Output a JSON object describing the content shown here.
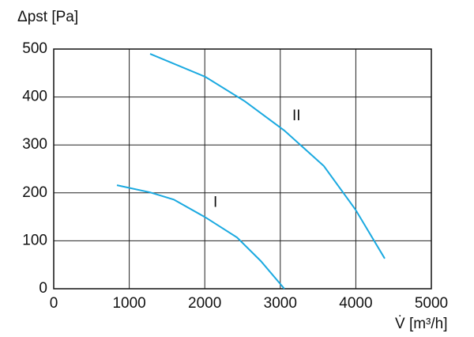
{
  "chart_data": {
    "type": "line",
    "y_label": "Δpst [Pa]",
    "x_label": "V̇ [m³/h]",
    "xlim": [
      0,
      5000
    ],
    "xticks": [
      0,
      1000,
      2000,
      3000,
      4000,
      5000
    ],
    "ylim": [
      0,
      500
    ],
    "yticks": [
      0,
      100,
      200,
      300,
      400,
      500
    ],
    "grid": true,
    "series": [
      {
        "name": "I",
        "color": "#1aa9e0",
        "x": [
          837,
          1276,
          1590,
          2008,
          2427,
          2741,
          3054
        ],
        "values": [
          216,
          201,
          186,
          149,
          107,
          58,
          0
        ]
      },
      {
        "name": "II",
        "color": "#1aa9e0",
        "x": [
          1276,
          2008,
          2531,
          3054,
          3577,
          3996,
          4383
        ],
        "values": [
          490,
          442,
          391,
          330,
          256,
          165,
          63
        ]
      }
    ]
  }
}
